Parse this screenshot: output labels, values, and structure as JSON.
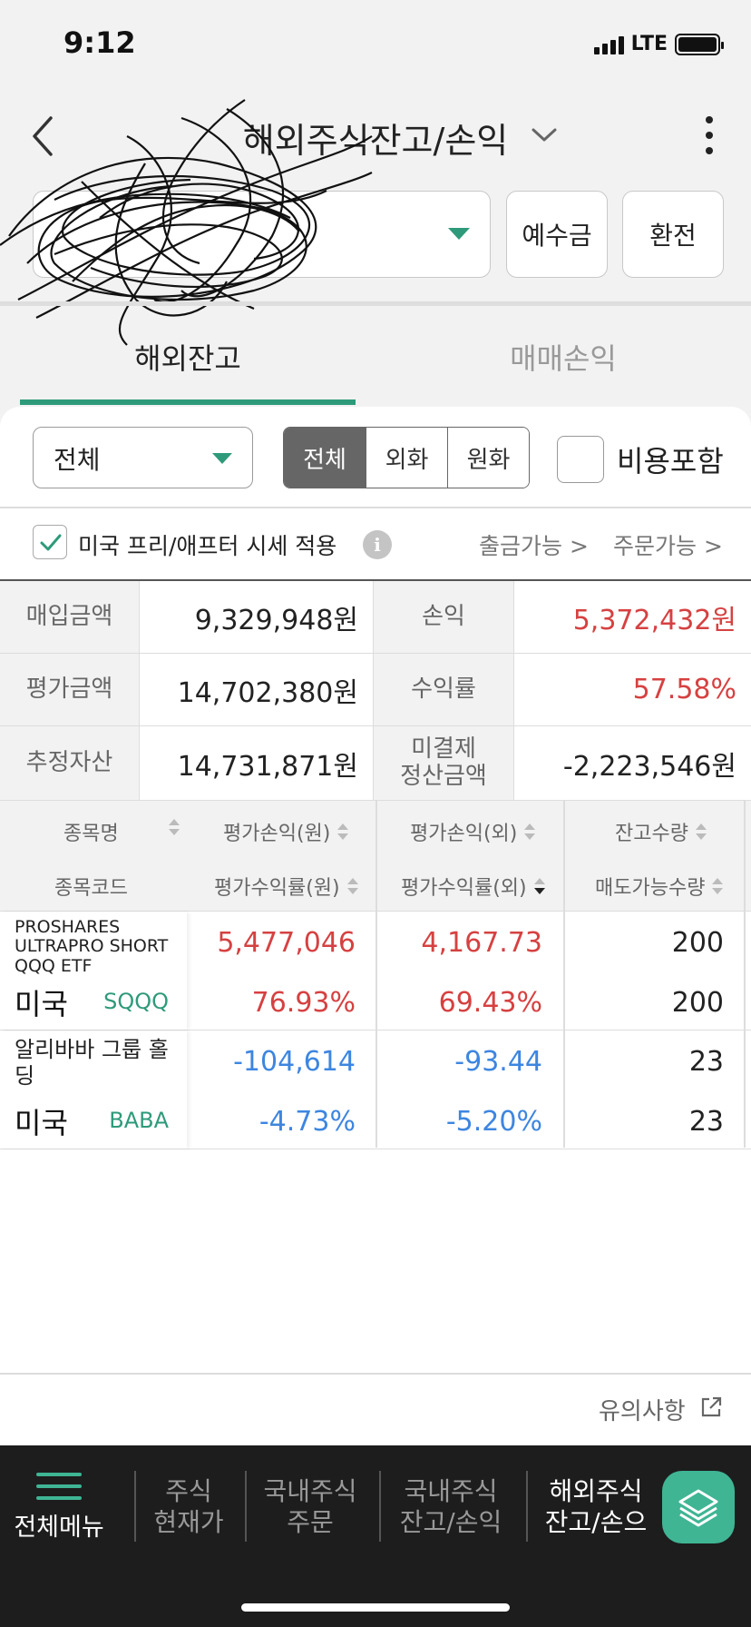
{
  "status_bar": {
    "time": "9:12",
    "network": "LTE"
  },
  "nav": {
    "title": "해외주식잔고/손익"
  },
  "header_buttons": {
    "deposit": "예수금",
    "exchange": "환전"
  },
  "tabs": [
    {
      "label": "해외잔고",
      "active": true
    },
    {
      "label": "매매손익",
      "active": false
    }
  ],
  "filters": {
    "category_selected": "전체",
    "currency_options": [
      "전체",
      "외화",
      "원화"
    ],
    "currency_selected": "전체",
    "include_cost_label": "비용포함",
    "include_cost_checked": false
  },
  "market_option": {
    "label": "미국 프리/애프터 시세 적용",
    "checked": true,
    "info_icon": "i",
    "withdraw_link": "출금가능 >",
    "order_link": "주문가능 >"
  },
  "summary": {
    "purchase_label": "매입금액",
    "purchase_value": "9,329,948원",
    "pnl_label": "손익",
    "pnl_value": "5,372,432원",
    "eval_label": "평가금액",
    "eval_value": "14,702,380원",
    "return_label": "수익률",
    "return_value": "57.58%",
    "est_assets_label": "추정자산",
    "est_assets_value": "14,731,871원",
    "unsettled_label_1": "미결제",
    "unsettled_label_2": "정산금액",
    "unsettled_value": "-2,223,546원"
  },
  "table": {
    "headers_row1": [
      "종목명",
      "평가손익(원)",
      "평가손익(외)",
      "잔고수량"
    ],
    "headers_row2": [
      "종목코드",
      "평가수익률(원)",
      "평가수익률(외)",
      "매도가능수량"
    ],
    "rows": [
      {
        "name": "PROSHARES ULTRAPRO SHORT QQQ ETF",
        "country": "미국",
        "code": "SQQQ",
        "pnl_krw": "5,477,046",
        "pnl_fx": "4,167.73",
        "qty": "200",
        "ret_krw": "76.93%",
        "ret_fx": "69.43%",
        "sellable": "200",
        "direction": "up"
      },
      {
        "name": "알리바바 그룹 홀딩",
        "country": "미국",
        "code": "BABA",
        "pnl_krw": "-104,614",
        "pnl_fx": "-93.44",
        "qty": "23",
        "ret_krw": "-4.73%",
        "ret_fx": "-5.20%",
        "sellable": "23",
        "direction": "down"
      }
    ]
  },
  "notice": {
    "label": "유의사항"
  },
  "bottom_nav": {
    "menu_label": "전체메뉴",
    "items": [
      {
        "line1": "주식",
        "line2": "현재가"
      },
      {
        "line1": "국내주식",
        "line2": "주문"
      },
      {
        "line1": "국내주식",
        "line2": "잔고/손익"
      },
      {
        "line1": "해외주식",
        "line2": "잔고/손으"
      }
    ]
  },
  "colors": {
    "accent_green": "#2e9a7a",
    "positive_red": "#d64141",
    "negative_blue": "#3d86e0",
    "bottom_bar": "#1d1d1d"
  },
  "icons": {
    "back": "chevron-left-icon",
    "title_dropdown": "chevron-down-icon",
    "more": "kebab-menu-icon",
    "info": "info-icon",
    "external": "external-link-icon",
    "menu": "hamburger-icon",
    "fab": "layers-icon"
  }
}
